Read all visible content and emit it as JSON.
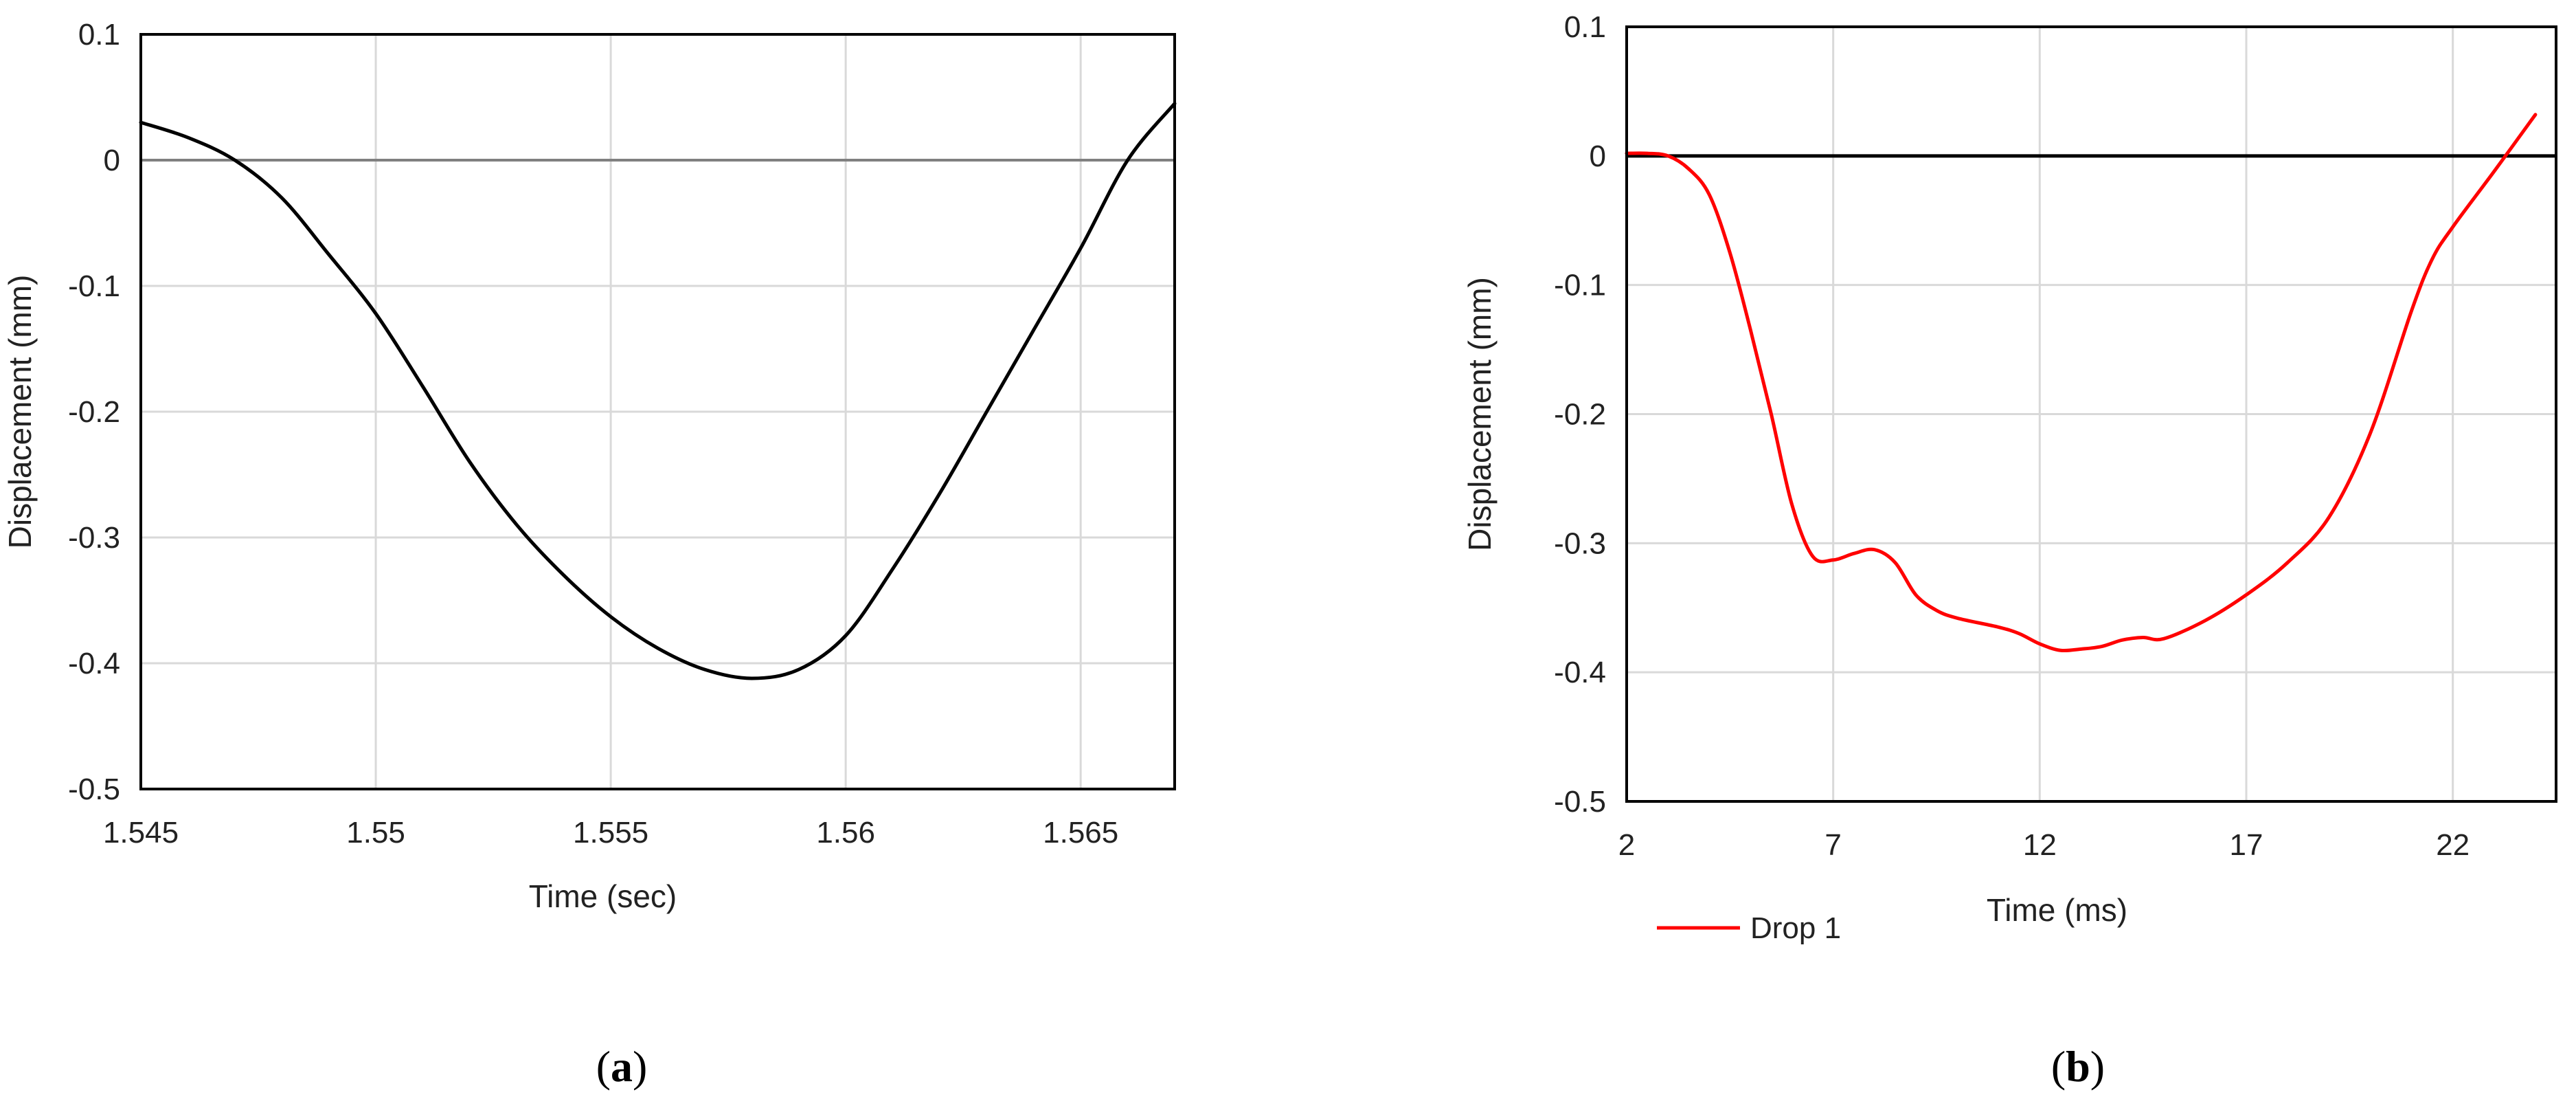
{
  "chart_data": [
    {
      "type": "line",
      "panel_label": "(a)",
      "xlabel": "Time (sec)",
      "ylabel": "Displacement (mm)",
      "xlim": [
        1.545,
        1.567
      ],
      "ylim": [
        -0.5,
        0.1
      ],
      "xticks": [
        1.545,
        1.55,
        1.555,
        1.56,
        1.565
      ],
      "xtick_labels": [
        "1.545",
        "1.55",
        "1.555",
        "1.56",
        "1.565"
      ],
      "yticks": [
        -0.5,
        -0.4,
        -0.3,
        -0.2,
        -0.1,
        0,
        0.1
      ],
      "ytick_labels": [
        "-0.5",
        "-0.4",
        "-0.3",
        "-0.2",
        "-0.1",
        "0",
        "0.1"
      ],
      "grid": true,
      "zero_line": true,
      "legend": "none",
      "series": [
        {
          "color": "#000000",
          "x": [
            1.545,
            1.546,
            1.547,
            1.548,
            1.549,
            1.55,
            1.551,
            1.552,
            1.553,
            1.554,
            1.555,
            1.556,
            1.557,
            1.558,
            1.559,
            1.56,
            1.561,
            1.562,
            1.563,
            1.564,
            1.565,
            1.566,
            1.567
          ],
          "y": [
            0.03,
            0.018,
            0.0,
            -0.03,
            -0.075,
            -0.122,
            -0.18,
            -0.24,
            -0.29,
            -0.33,
            -0.363,
            -0.388,
            -0.405,
            -0.412,
            -0.405,
            -0.378,
            -0.325,
            -0.265,
            -0.2,
            -0.135,
            -0.07,
            0.0,
            0.045
          ]
        }
      ]
    },
    {
      "type": "line",
      "panel_label": "(b)",
      "xlabel": "Time (ms)",
      "ylabel": "Displacement (mm)",
      "xlim": [
        2,
        24.5
      ],
      "ylim": [
        -0.5,
        0.1
      ],
      "xticks": [
        2,
        7,
        12,
        17,
        22
      ],
      "xtick_labels": [
        "2",
        "7",
        "12",
        "17",
        "22"
      ],
      "yticks": [
        -0.5,
        -0.4,
        -0.3,
        -0.2,
        -0.1,
        0,
        0.1
      ],
      "ytick_labels": [
        "-0.5",
        "-0.4",
        "-0.3",
        "-0.2",
        "-0.1",
        "0",
        "0.1"
      ],
      "grid": true,
      "zero_line": true,
      "legend": "bottom-left",
      "series": [
        {
          "name": "Drop 1",
          "color": "#ff0000",
          "x": [
            2,
            2.5,
            3,
            3.5,
            4,
            4.5,
            5,
            5.5,
            6,
            6.5,
            7,
            7.5,
            8,
            8.5,
            9,
            9.5,
            10,
            11,
            11.5,
            12,
            12.5,
            13,
            13.5,
            14,
            14.5,
            15,
            16,
            17,
            18,
            19,
            20,
            21,
            21.5,
            22,
            23,
            24
          ],
          "y": [
            0.002,
            0.002,
            0.0,
            -0.01,
            -0.03,
            -0.075,
            -0.135,
            -0.2,
            -0.27,
            -0.31,
            -0.313,
            -0.308,
            -0.305,
            -0.315,
            -0.34,
            -0.352,
            -0.358,
            -0.365,
            -0.37,
            -0.378,
            -0.383,
            -0.382,
            -0.38,
            -0.375,
            -0.373,
            -0.374,
            -0.36,
            -0.34,
            -0.315,
            -0.28,
            -0.215,
            -0.12,
            -0.08,
            -0.055,
            -0.012,
            0.032
          ]
        }
      ]
    }
  ]
}
